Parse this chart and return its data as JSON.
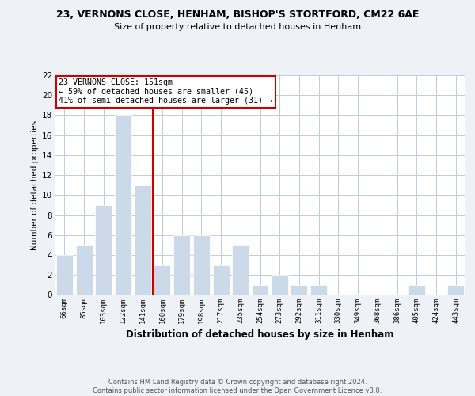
{
  "title": "23, VERNONS CLOSE, HENHAM, BISHOP'S STORTFORD, CM22 6AE",
  "subtitle": "Size of property relative to detached houses in Henham",
  "xlabel": "Distribution of detached houses by size in Henham",
  "ylabel": "Number of detached properties",
  "categories": [
    "66sqm",
    "85sqm",
    "103sqm",
    "122sqm",
    "141sqm",
    "160sqm",
    "179sqm",
    "198sqm",
    "217sqm",
    "235sqm",
    "254sqm",
    "273sqm",
    "292sqm",
    "311sqm",
    "330sqm",
    "349sqm",
    "368sqm",
    "386sqm",
    "405sqm",
    "424sqm",
    "443sqm"
  ],
  "values": [
    4,
    5,
    9,
    18,
    11,
    3,
    6,
    6,
    3,
    5,
    1,
    2,
    1,
    1,
    0,
    0,
    0,
    0,
    1,
    0,
    1
  ],
  "bar_color": "#ccd9e8",
  "vline_x": 4.5,
  "vline_color": "#cc0000",
  "annotation_text": "23 VERNONS CLOSE: 151sqm\n← 59% of detached houses are smaller (45)\n41% of semi-detached houses are larger (31) →",
  "annotation_box_edge": "#cc0000",
  "ylim": [
    0,
    22
  ],
  "yticks": [
    0,
    2,
    4,
    6,
    8,
    10,
    12,
    14,
    16,
    18,
    20,
    22
  ],
  "footer": "Contains HM Land Registry data © Crown copyright and database right 2024.\nContains public sector information licensed under the Open Government Licence v3.0.",
  "bg_color": "#eef2f7",
  "plot_bg_color": "#ffffff",
  "grid_color": "#c0ccd8"
}
